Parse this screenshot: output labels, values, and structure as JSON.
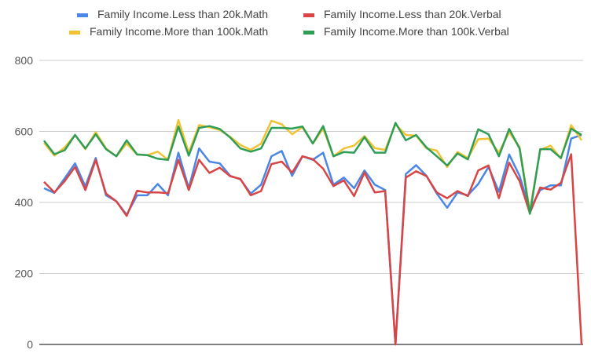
{
  "chart_data": {
    "type": "line",
    "title": "",
    "xlabel": "",
    "ylabel": "",
    "ylim": [
      0,
      800
    ],
    "yticks": [
      0,
      200,
      400,
      600,
      800
    ],
    "grid": true,
    "legend_position": "top",
    "series": [
      {
        "name": "Family Income.Less than 20k.Math",
        "color": "#4a86e8",
        "values": [
          440,
          427,
          468,
          510,
          445,
          525,
          420,
          403,
          365,
          420,
          420,
          452,
          420,
          540,
          440,
          552,
          515,
          510,
          475,
          465,
          425,
          450,
          530,
          545,
          475,
          530,
          520,
          540,
          450,
          470,
          440,
          490,
          450,
          435,
          0,
          480,
          505,
          475,
          425,
          385,
          428,
          420,
          452,
          500,
          430,
          535,
          475,
          380,
          435,
          448,
          448,
          580,
          590
        ]
      },
      {
        "name": "Family Income.Less than 20k.Verbal",
        "color": "#d94545",
        "values": [
          458,
          428,
          460,
          500,
          435,
          520,
          425,
          403,
          362,
          433,
          428,
          428,
          426,
          520,
          435,
          520,
          483,
          498,
          474,
          466,
          420,
          432,
          508,
          515,
          484,
          530,
          522,
          495,
          446,
          462,
          418,
          484,
          428,
          432,
          0,
          470,
          488,
          474,
          428,
          412,
          432,
          418,
          490,
          504,
          412,
          512,
          460,
          370,
          442,
          436,
          455,
          536,
          0
        ]
      },
      {
        "name": "Family Income.More than 100k.Math",
        "color": "#f1c232",
        "values": [
          568,
          532,
          555,
          590,
          550,
          598,
          552,
          530,
          566,
          535,
          533,
          543,
          520,
          632,
          540,
          618,
          612,
          604,
          585,
          562,
          548,
          566,
          630,
          620,
          592,
          612,
          566,
          608,
          530,
          552,
          560,
          587,
          553,
          548,
          620,
          590,
          588,
          552,
          546,
          500,
          542,
          525,
          578,
          580,
          540,
          598,
          556,
          375,
          548,
          560,
          524,
          618,
          575
        ]
      },
      {
        "name": "Family Income.More than 100k.Verbal",
        "color": "#2e9e57",
        "values": [
          574,
          536,
          547,
          590,
          552,
          592,
          550,
          530,
          575,
          535,
          533,
          523,
          520,
          614,
          532,
          610,
          615,
          607,
          583,
          552,
          543,
          552,
          610,
          610,
          608,
          614,
          566,
          615,
          530,
          542,
          540,
          584,
          540,
          540,
          624,
          575,
          590,
          555,
          530,
          504,
          538,
          521,
          606,
          592,
          530,
          607,
          552,
          368,
          550,
          550,
          525,
          608,
          590
        ]
      }
    ]
  }
}
